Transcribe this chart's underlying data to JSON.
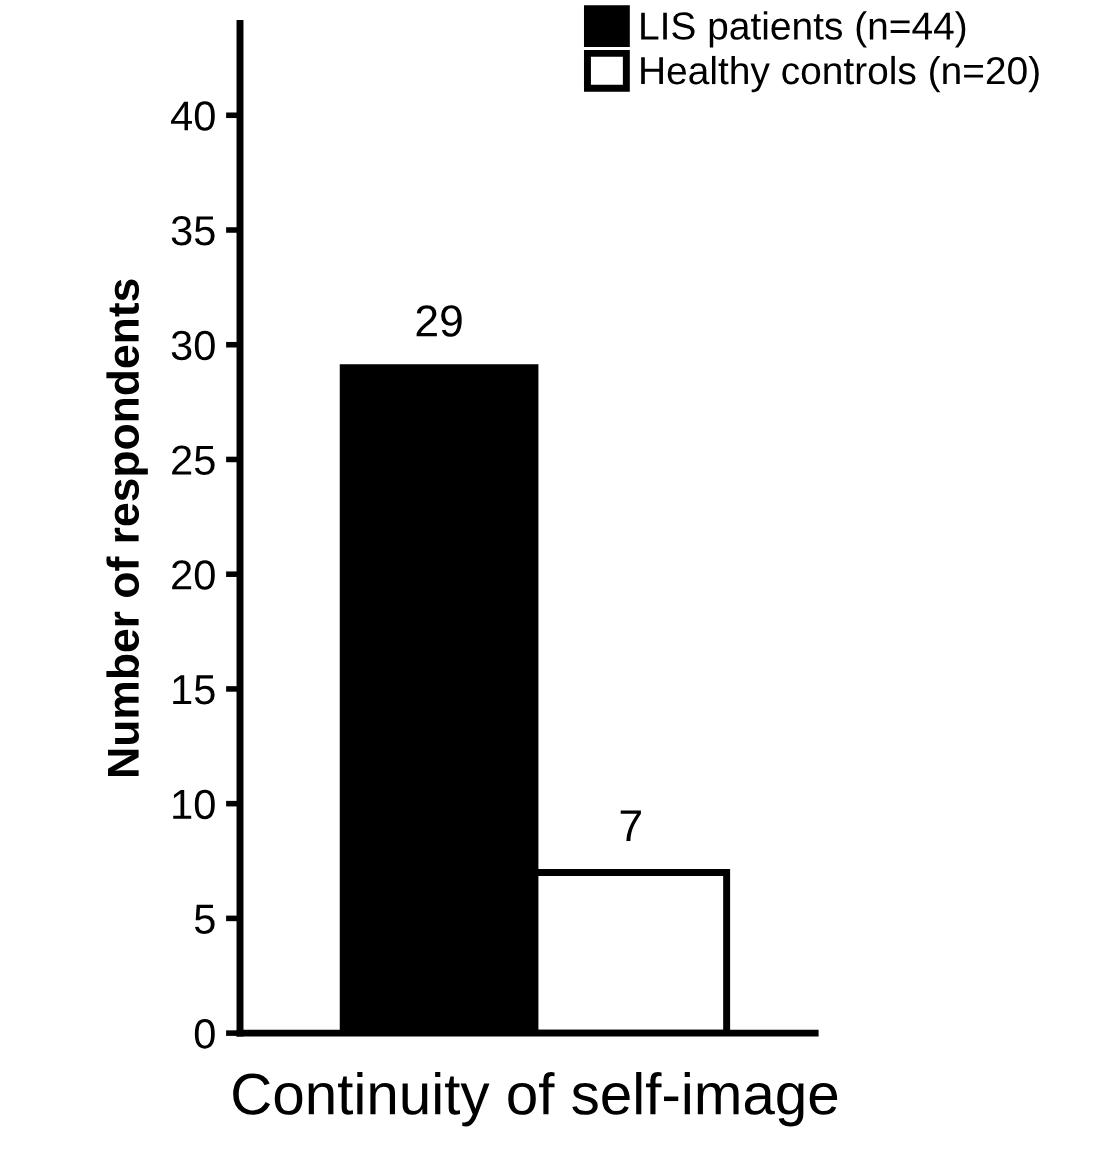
{
  "chart_data": {
    "type": "bar",
    "ylabel": "Number of respondents",
    "categories": [
      "Continuity of self-image"
    ],
    "series": [
      {
        "name": "LIS patients (n=44)",
        "color": "#000000",
        "values": [
          29
        ]
      },
      {
        "name": "Healthy controls (n=20)",
        "color": "#ffffff",
        "values": [
          7
        ]
      }
    ],
    "ylim": [
      0,
      44
    ],
    "yticks": [
      0,
      5,
      10,
      15,
      20,
      25,
      30,
      35,
      40
    ],
    "data_labels": true,
    "legend": "top right",
    "grid": false
  }
}
